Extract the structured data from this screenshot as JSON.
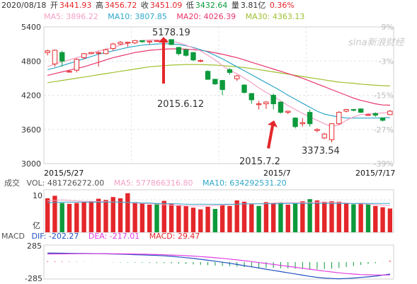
{
  "header": {
    "date": "2020/08/18",
    "open_label": "开",
    "open": "3441.93",
    "high_label": "高",
    "high": "3456.72",
    "close_label": "收",
    "close": "3451.09",
    "low_label": "低",
    "low": "3432.64",
    "amount_label": "量",
    "amount": "3.81亿",
    "change_pct": "0.36%"
  },
  "ma_legend": {
    "ma5": "MA5: 3896.22",
    "ma10": "MA10: 3807.85",
    "ma20": "MA20: 4026.39",
    "ma30": "MA30: 4363.13"
  },
  "volume_legend": {
    "title": "成交",
    "vol": "VOL: 481726272.00",
    "ma5": "MA5: 577866316.80",
    "ma10": "MA10: 634292531.20"
  },
  "macd_legend": {
    "title": "MACD",
    "dif": "DIF: -202.27",
    "dea": "DEA: -217.01",
    "macd": "MACD: 29.47"
  },
  "watermark": "sina新浪财经",
  "colors": {
    "up": "#e4272b",
    "down": "#0d9a3c",
    "ma5": "#f4a0c6",
    "ma10": "#2ea8c8",
    "ma20": "#e8356a",
    "ma30": "#a0c030",
    "dif": "#2050c0",
    "dea": "#e040e0"
  },
  "chart_data": {
    "type": "candlestick",
    "price_axis": {
      "ticks": [
        "5400",
        "4800",
        "4200",
        "3600",
        "3000"
      ],
      "range": [
        3000,
        5400
      ]
    },
    "pct_axis": {
      "ticks": [
        "9%",
        "-3%",
        "-15%",
        "-27%",
        "-39%"
      ]
    },
    "x_labels": [
      "2015/5/27",
      "2015/7",
      "2015/7/17"
    ],
    "annotations": {
      "high_value": "5178.19",
      "low_value": "3373.54",
      "label1": "2015.6.12",
      "label2": "2015.7.2"
    },
    "candles": [
      {
        "o": 4950,
        "c": 4980,
        "h": 5000,
        "l": 4900
      },
      {
        "o": 4750,
        "c": 4990,
        "h": 5000,
        "l": 4700
      },
      {
        "o": 4950,
        "c": 4800,
        "h": 4980,
        "l": 4700
      },
      {
        "o": 4620,
        "c": 4620,
        "h": 4640,
        "l": 4600
      },
      {
        "o": 4640,
        "c": 4830,
        "h": 4850,
        "l": 4600
      },
      {
        "o": 4860,
        "c": 4930,
        "h": 4940,
        "l": 4830
      },
      {
        "o": 4930,
        "c": 4950,
        "h": 4960,
        "l": 4920
      },
      {
        "o": 4950,
        "c": 4950,
        "h": 4970,
        "l": 4700
      },
      {
        "o": 4930,
        "c": 5000,
        "h": 5020,
        "l": 4920
      },
      {
        "o": 5020,
        "c": 5100,
        "h": 5120,
        "l": 4980
      },
      {
        "o": 5100,
        "c": 5130,
        "h": 5150,
        "l": 5080
      },
      {
        "o": 5130,
        "c": 5130,
        "h": 5140,
        "l": 5050
      },
      {
        "o": 5120,
        "c": 5160,
        "h": 5170,
        "l": 5100
      },
      {
        "o": 5160,
        "c": 5140,
        "h": 5165,
        "l": 5120
      },
      {
        "o": 5140,
        "c": 5150,
        "h": 5160,
        "l": 5090
      },
      {
        "o": 5150,
        "c": 5160,
        "h": 5170,
        "l": 5140
      },
      {
        "o": 5160,
        "c": 5178,
        "h": 5178,
        "l": 5140
      },
      {
        "o": 5178,
        "c": 5090,
        "h": 5178,
        "l": 5080
      },
      {
        "o": 5040,
        "c": 4930,
        "h": 5050,
        "l": 4900
      },
      {
        "o": 5000,
        "c": 4900,
        "h": 5000,
        "l": 4880
      },
      {
        "o": 4950,
        "c": 4820,
        "h": 4960,
        "l": 4800
      },
      {
        "o": 4800,
        "c": 4810,
        "h": 4830,
        "l": 4780
      },
      {
        "o": 4620,
        "c": 4480,
        "h": 4640,
        "l": 4470
      },
      {
        "o": 4480,
        "c": 4400,
        "h": 4490,
        "l": 4380
      },
      {
        "o": 4460,
        "c": 4300,
        "h": 4470,
        "l": 4200
      },
      {
        "o": 4650,
        "c": 4600,
        "h": 4680,
        "l": 4560
      },
      {
        "o": 4490,
        "c": 4540,
        "h": 4560,
        "l": 4450
      },
      {
        "o": 4380,
        "c": 4250,
        "h": 4390,
        "l": 4230
      },
      {
        "o": 4230,
        "c": 4120,
        "h": 4240,
        "l": 4050
      },
      {
        "o": 4050,
        "c": 4050,
        "h": 4100,
        "l": 3950
      },
      {
        "o": 4050,
        "c": 4080,
        "h": 4100,
        "l": 3960
      },
      {
        "o": 4200,
        "c": 4050,
        "h": 4230,
        "l": 3950
      },
      {
        "o": 4080,
        "c": 3900,
        "h": 4090,
        "l": 3880
      },
      {
        "o": 3900,
        "c": 3920,
        "h": 3930,
        "l": 3870
      },
      {
        "o": 3800,
        "c": 3650,
        "h": 3810,
        "l": 3620
      },
      {
        "o": 3700,
        "c": 3720,
        "h": 3800,
        "l": 3650
      },
      {
        "o": 3900,
        "c": 3700,
        "h": 3950,
        "l": 3650
      },
      {
        "o": 3580,
        "c": 3600,
        "h": 3620,
        "l": 3550
      },
      {
        "o": 3450,
        "c": 3520,
        "h": 3540,
        "l": 3430
      },
      {
        "o": 3420,
        "c": 3700,
        "h": 3710,
        "l": 3373
      },
      {
        "o": 3700,
        "c": 3900,
        "h": 3920,
        "l": 3680
      },
      {
        "o": 3920,
        "c": 3950,
        "h": 3960,
        "l": 3900
      },
      {
        "o": 3950,
        "c": 3940,
        "h": 3960,
        "l": 3920
      },
      {
        "o": 3960,
        "c": 3900,
        "h": 3970,
        "l": 3890
      },
      {
        "o": 3850,
        "c": 3860,
        "h": 3880,
        "l": 3840
      },
      {
        "o": 3880,
        "c": 3850,
        "h": 3900,
        "l": 3820
      },
      {
        "o": 3800,
        "c": 3760,
        "h": 3810,
        "l": 3740
      },
      {
        "o": 3860,
        "c": 3920,
        "h": 3940,
        "l": 3850
      }
    ],
    "ma_series": {
      "ma5": [
        4700,
        4750,
        4790,
        4820,
        4860,
        4900,
        4940,
        4980,
        5010,
        5040,
        5080,
        5110,
        5140,
        5160,
        5170,
        5170,
        5165,
        5150,
        5120,
        5080,
        5030,
        4980,
        4900,
        4820,
        4720,
        4640,
        4580,
        4500,
        4420,
        4330,
        4250,
        4180,
        4100,
        4020,
        3950,
        3880,
        3820,
        3760,
        3700,
        3650,
        3680,
        3760,
        3820,
        3860,
        3870,
        3880,
        3890,
        3896
      ],
      "ma10": [
        4650,
        4680,
        4720,
        4760,
        4800,
        4840,
        4880,
        4920,
        4950,
        4980,
        5010,
        5040,
        5060,
        5080,
        5090,
        5100,
        5105,
        5100,
        5090,
        5070,
        5040,
        5000,
        4960,
        4900,
        4840,
        4770,
        4700,
        4630,
        4560,
        4490,
        4420,
        4350,
        4280,
        4200,
        4130,
        4060,
        3990,
        3920,
        3870,
        3840,
        3820,
        3800,
        3800,
        3800,
        3800,
        3800,
        3805,
        3808
      ],
      "ma20": [
        4550,
        4580,
        4610,
        4640,
        4670,
        4700,
        4740,
        4780,
        4820,
        4860,
        4890,
        4920,
        4950,
        4970,
        4990,
        5000,
        5010,
        5015,
        5015,
        5010,
        5000,
        4990,
        4970,
        4945,
        4920,
        4890,
        4860,
        4820,
        4780,
        4740,
        4700,
        4660,
        4620,
        4580,
        4540,
        4500,
        4450,
        4400,
        4350,
        4300,
        4250,
        4200,
        4150,
        4110,
        4080,
        4050,
        4030,
        4026
      ],
      "ma30": [
        4420,
        4440,
        4460,
        4480,
        4500,
        4520,
        4540,
        4560,
        4580,
        4600,
        4620,
        4640,
        4660,
        4680,
        4700,
        4710,
        4720,
        4730,
        4735,
        4740,
        4740,
        4740,
        4735,
        4730,
        4720,
        4710,
        4700,
        4685,
        4670,
        4650,
        4630,
        4610,
        4590,
        4570,
        4550,
        4530,
        4510,
        4490,
        4470,
        4450,
        4430,
        4420,
        4410,
        4395,
        4385,
        4375,
        4368,
        4363
      ]
    },
    "volume": {
      "max_tick": "10",
      "unit": "亿",
      "values": [
        8.0,
        8.6,
        6.9,
        6.7,
        6.9,
        7.1,
        7.3,
        7.9,
        7.6,
        8.3,
        8.0,
        9.2,
        7.1,
        6.8,
        6.5,
        6.8,
        7.4,
        6.8,
        6.4,
        6.2,
        5.8,
        5.4,
        6.0,
        5.5,
        6.4,
        6.2,
        7.5,
        7.2,
        6.6,
        6.2,
        7.1,
        6.9,
        6.9,
        6.5,
        6.8,
        7.3,
        7.8,
        7.5,
        7.2,
        7.3,
        7.2,
        6.9,
        6.6,
        6.9,
        6.6,
        6.2,
        5.9,
        5.6
      ],
      "up": [
        true,
        true,
        false,
        true,
        true,
        true,
        true,
        true,
        true,
        true,
        true,
        true,
        true,
        true,
        true,
        false,
        true,
        true,
        true,
        true,
        true,
        true,
        true,
        false,
        true,
        true,
        true,
        true,
        true,
        false,
        true,
        true,
        false,
        true,
        false,
        true,
        false,
        true,
        true,
        true,
        true,
        true,
        false,
        true,
        false,
        true,
        true,
        true
      ],
      "ma5_line": [
        7.4,
        7.5,
        7.6,
        7.5,
        7.4,
        7.3,
        7.3,
        7.2,
        7.2,
        7.1,
        7.1,
        7.0,
        6.9,
        6.8,
        6.7,
        6.6,
        6.5,
        6.4,
        6.3,
        6.2,
        6.2,
        6.2,
        6.2,
        6.3,
        6.4,
        6.5,
        6.6,
        6.7,
        6.7,
        6.7,
        6.8,
        6.9,
        7.0,
        7.0,
        7.0,
        7.0,
        7.0,
        7.1,
        7.1,
        7.0,
        7.0,
        6.9,
        6.8,
        6.7,
        6.6,
        6.5,
        6.4,
        6.3
      ],
      "ma10_line": [
        7.0,
        7.0,
        7.1,
        7.1,
        7.1,
        7.1,
        7.1,
        7.1,
        7.1,
        7.1,
        7.1,
        7.0,
        7.0,
        6.9,
        6.9,
        6.8,
        6.8,
        6.7,
        6.7,
        6.6,
        6.6,
        6.6,
        6.6,
        6.6,
        6.6,
        6.6,
        6.6,
        6.7,
        6.7,
        6.7,
        6.7,
        6.7,
        6.7,
        6.8,
        6.8,
        6.8,
        6.8,
        6.8,
        6.8,
        6.8,
        6.8,
        6.8,
        6.8,
        6.8,
        6.8,
        6.8,
        6.8,
        6.8
      ]
    },
    "macd": {
      "ticks": [
        "285",
        "-285"
      ],
      "range": [
        -285,
        285
      ],
      "dif": [
        150,
        150,
        148,
        146,
        145,
        144,
        142,
        140,
        138,
        135,
        132,
        128,
        124,
        120,
        115,
        110,
        104,
        96,
        86,
        74,
        60,
        46,
        30,
        14,
        -2,
        -20,
        -40,
        -60,
        -80,
        -100,
        -120,
        -140,
        -160,
        -180,
        -200,
        -220,
        -240,
        -256,
        -268,
        -276,
        -280,
        -276,
        -268,
        -258,
        -248,
        -236,
        -220,
        -202
      ],
      "dea": [
        135,
        136,
        137,
        138,
        139,
        140,
        140,
        140,
        140,
        139,
        138,
        136,
        134,
        132,
        129,
        126,
        122,
        118,
        113,
        107,
        100,
        92,
        83,
        73,
        62,
        50,
        37,
        23,
        8,
        -8,
        -24,
        -40,
        -56,
        -72,
        -88,
        -104,
        -120,
        -136,
        -152,
        -166,
        -180,
        -192,
        -202,
        -210,
        -214,
        -216,
        -217,
        -217
      ],
      "hist": [
        15,
        14,
        11,
        8,
        6,
        4,
        2,
        0,
        -2,
        -4,
        -6,
        -8,
        -10,
        -12,
        -14,
        -16,
        -18,
        -22,
        -27,
        -33,
        -40,
        -46,
        -53,
        -59,
        -64,
        -70,
        -77,
        -83,
        -88,
        -92,
        -96,
        -100,
        -104,
        -108,
        -112,
        -116,
        -120,
        -120,
        -116,
        -110,
        -100,
        -84,
        -66,
        -48,
        -34,
        -20,
        -3,
        29
      ]
    }
  }
}
